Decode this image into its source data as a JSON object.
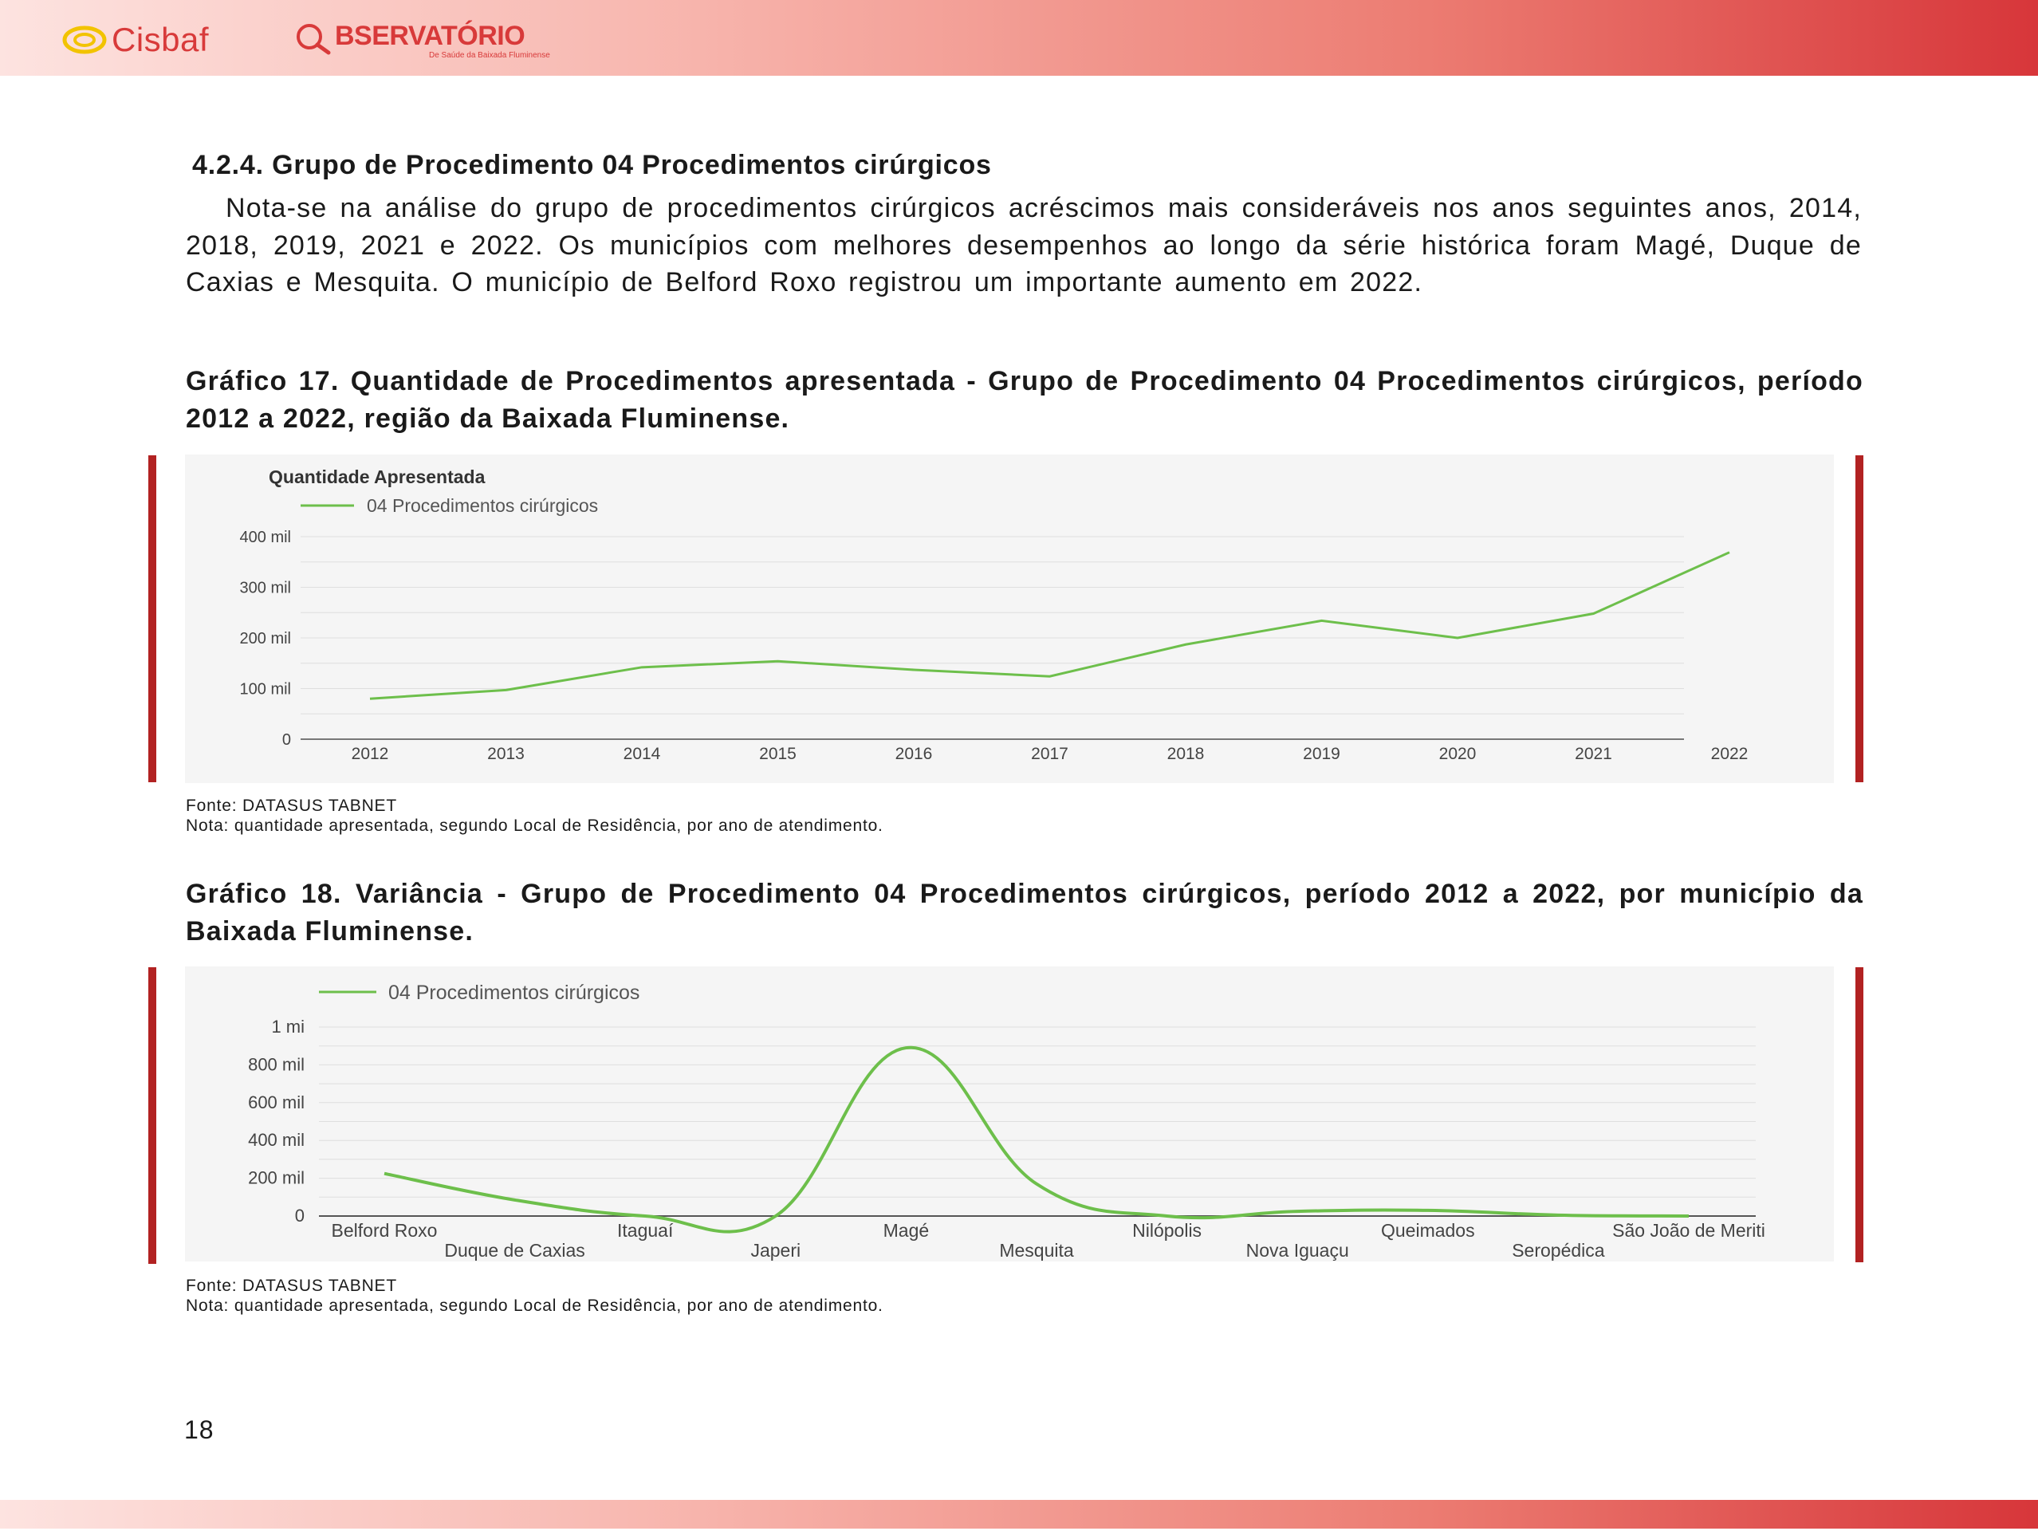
{
  "header": {
    "cisbaf_logo_text": "Cisbaf",
    "observatorio_title": "BSERVATÓRIO",
    "observatorio_subtitle": "De Saúde da Baixada Fluminense"
  },
  "section": {
    "title": "4.2.4. Grupo de Procedimento 04 Procedimentos cirúrgicos",
    "paragraph": "Nota-se na análise do grupo de procedimentos cirúrgicos acréscimos mais consideráveis nos anos seguintes anos, 2014, 2018, 2019, 2021 e 2022. Os municípios com melhores desempenhos ao longo da série histórica foram Magé, Duque de Caxias e Mesquita. O município de Belford Roxo registrou um importante aumento em 2022."
  },
  "figure17": {
    "caption": "Gráfico 17. Quantidade de Procedimentos apresentada - Grupo de Procedimento 04 Procedimentos cirúrgicos, período 2012 a 2022, região da Baixada Fluminense.",
    "source": "Fonte: DATASUS TABNET",
    "note": "Nota: quantidade apresentada, segundo Local de Residência, por ano de atendimento."
  },
  "figure18": {
    "caption": "Gráfico 18. Variância - Grupo de Procedimento 04 Procedimentos cirúrgicos, período 2012 a 2022, por município da Baixada Fluminense.",
    "source": "Fonte: DATASUS TABNET",
    "note": "Nota: quantidade apresentada, segundo Local de Residência, por ano de atendimento."
  },
  "page_number": "18",
  "colors": {
    "line": "#6dbf4b",
    "accent_bar": "#b22222",
    "brand": "#d83a3a"
  },
  "chart_data": [
    {
      "type": "line",
      "title": "Quantidade Apresentada",
      "x": [
        "2012",
        "2013",
        "2014",
        "2015",
        "2016",
        "2017",
        "2018",
        "2019",
        "2020",
        "2021",
        "2022"
      ],
      "series": [
        {
          "name": "04 Procedimentos cirúrgicos",
          "values": [
            80000,
            97000,
            142000,
            154000,
            137000,
            124000,
            187000,
            234000,
            200000,
            248000,
            369000
          ]
        }
      ],
      "yticks": [
        "0",
        "100 mil",
        "200 mil",
        "300 mil",
        "400 mil"
      ],
      "ylim": [
        0,
        400000
      ],
      "grid": true,
      "legend": "top-left"
    },
    {
      "type": "line",
      "title": "",
      "x": [
        "Belford Roxo",
        "Duque de Caxias",
        "Itaguaí",
        "Japeri",
        "Magé",
        "Mesquita",
        "Nilópolis",
        "Nova Iguaçu",
        "Queimados",
        "Seropédica",
        "São João de Meriti"
      ],
      "series": [
        {
          "name": "04 Procedimentos cirúrgicos",
          "values": [
            225000,
            85000,
            0,
            0,
            890000,
            170000,
            0,
            25000,
            30000,
            5000,
            0
          ]
        }
      ],
      "yticks": [
        "0",
        "200 mil",
        "400 mil",
        "600 mil",
        "800 mil",
        "1 mi"
      ],
      "ylim": [
        0,
        1000000
      ],
      "grid": true,
      "legend": "top-left"
    }
  ]
}
